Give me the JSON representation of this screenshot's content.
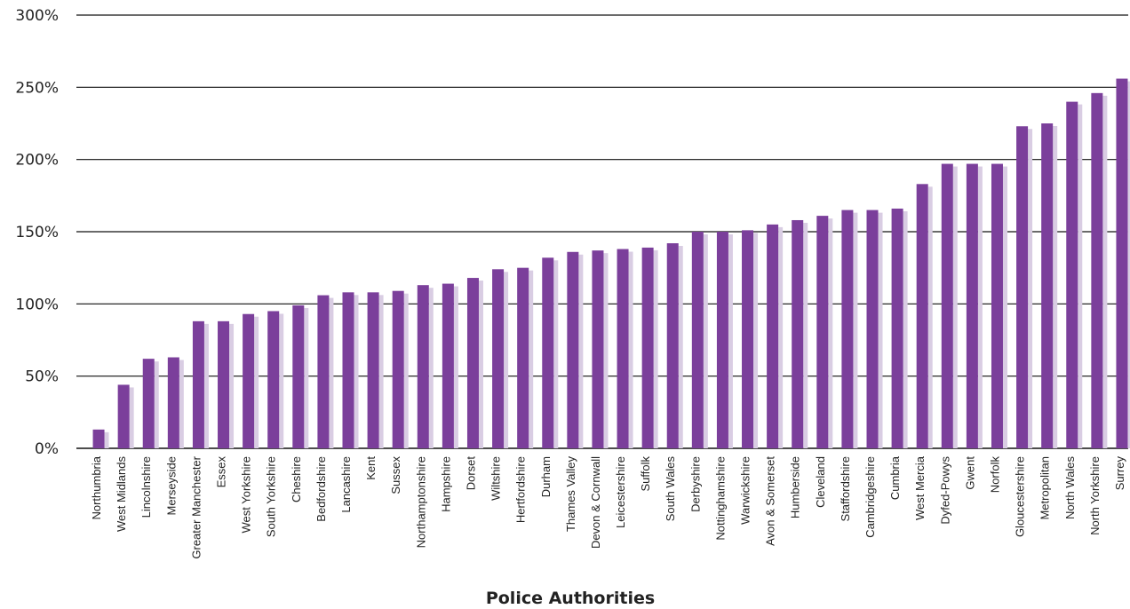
{
  "chart_data": {
    "type": "bar",
    "title": "",
    "xlabel": "Police Authorities",
    "ylabel": "",
    "ylim": [
      0,
      300
    ],
    "yticks": [
      0,
      50,
      100,
      150,
      200,
      250,
      300
    ],
    "ytick_labels": [
      "0%",
      "50%",
      "100%",
      "150%",
      "200%",
      "250%",
      "300%"
    ],
    "grid": "horizontal",
    "bar_color": "#7b3f9b",
    "shadow_color": "#d9cde3",
    "categories": [
      "Northumbria",
      "West Midlands",
      "Lincolnshire",
      "Merseyside",
      "Greater Manchester",
      "Essex",
      "West Yorkshire",
      "South Yorkshire",
      "Cheshire",
      "Bedfordshire",
      "Lancashire",
      "Kent",
      "Sussex",
      "Northamptonshire",
      "Hampshire",
      "Dorset",
      "Wiltshire",
      "Hertfordshire",
      "Durham",
      "Thames Valley",
      "Devon & Cornwall",
      "Leicestershire",
      "Suffolk",
      "South Wales",
      "Derbyshire",
      "Nottinghamshire",
      "Warwickshire",
      "Avon & Somerset",
      "Humberside",
      "Cleveland",
      "Staffordshire",
      "Cambridgeshire",
      "Cumbria",
      "West Mercia",
      "Dyfed-Powys",
      "Gwent",
      "Norfolk",
      "Gloucestershire",
      "Metropolitan",
      "North Wales",
      "North Yorkshire",
      "Surrey"
    ],
    "values": [
      13,
      44,
      62,
      63,
      88,
      88,
      93,
      95,
      99,
      106,
      108,
      108,
      109,
      113,
      114,
      118,
      124,
      125,
      132,
      136,
      137,
      138,
      139,
      142,
      150,
      150,
      151,
      155,
      158,
      161,
      165,
      165,
      166,
      183,
      197,
      197,
      197,
      223,
      225,
      240,
      246,
      256
    ]
  }
}
